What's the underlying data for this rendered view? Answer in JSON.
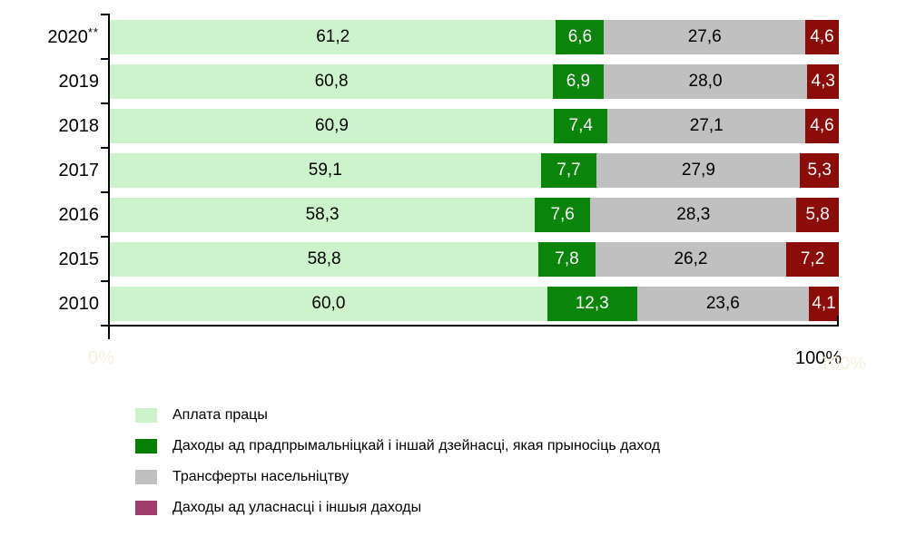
{
  "chart_data": {
    "type": "bar",
    "orientation": "horizontal",
    "stacked": true,
    "unit": "%",
    "categories": [
      {
        "label": "2020",
        "sup": "**"
      },
      {
        "label": "2019",
        "sup": ""
      },
      {
        "label": "2018",
        "sup": ""
      },
      {
        "label": "2017",
        "sup": ""
      },
      {
        "label": "2016",
        "sup": ""
      },
      {
        "label": "2015",
        "sup": ""
      },
      {
        "label": "2010",
        "sup": ""
      }
    ],
    "series": [
      {
        "name": "Аплата працы",
        "color": "#cdf3cd",
        "legend_color": "#cdf3cd",
        "label_color": "#000000",
        "values": [
          61.2,
          60.8,
          60.9,
          59.1,
          58.3,
          58.8,
          60.0
        ]
      },
      {
        "name": "Даходы ад прадпрымальніцкай і іншай дзейнасці, якая прыносіць даход",
        "color": "#0b840b",
        "legend_color": "#067f06",
        "label_color": "#ffffff",
        "values": [
          6.6,
          6.9,
          7.4,
          7.7,
          7.6,
          7.8,
          12.3
        ]
      },
      {
        "name": "Трансферты насельніцтву",
        "color": "#c0c0c0",
        "legend_color": "#c0c0c0",
        "label_color": "#000000",
        "values": [
          27.6,
          28.0,
          27.1,
          27.9,
          28.3,
          26.2,
          23.6
        ]
      },
      {
        "name": "Даходы ад уласнасці і іншыя даходы",
        "color": "#8b0c08",
        "legend_color": "#a23c6c",
        "label_color": "#ffffff",
        "values": [
          4.6,
          4.3,
          4.6,
          5.3,
          5.8,
          7.2,
          4.1
        ]
      }
    ],
    "value_format": "comma-decimal-1",
    "x_axis": {
      "range": [
        0,
        100
      ],
      "left_label": "0%",
      "right_label": "100%",
      "left_label_faint": true
    },
    "legend_position": "bottom-left",
    "grid": false
  }
}
